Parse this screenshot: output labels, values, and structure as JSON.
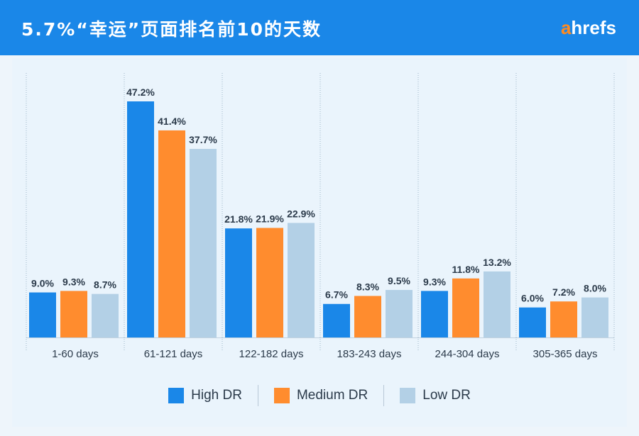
{
  "header": {
    "title": "5.7%“幸运”页面排名前10的天数",
    "logo_a": "a",
    "logo_rest": "hrefs"
  },
  "colors": {
    "header_bg": "#1a87e8",
    "high": "#1a87e8",
    "medium": "#ff8c2e",
    "low": "#b3d0e6",
    "text": "#2b3a4a"
  },
  "chart_data": {
    "type": "bar",
    "title": "5.7%“幸运”页面排名前10的天数",
    "categories": [
      "1-60 days",
      "61-121 days",
      "122-182 days",
      "183-243 days",
      "244-304 days",
      "305-365 days"
    ],
    "series": [
      {
        "name": "High DR",
        "values": [
          9.0,
          47.2,
          21.8,
          6.7,
          9.3,
          6.0
        ],
        "labels": [
          "9.0%",
          "47.2%",
          "21.8%",
          "6.7%",
          "9.3%",
          "6.0%"
        ]
      },
      {
        "name": "Medium DR",
        "values": [
          9.3,
          41.4,
          21.9,
          8.3,
          11.8,
          7.2
        ],
        "labels": [
          "9.3%",
          "41.4%",
          "21.9%",
          "8.3%",
          "11.8%",
          "7.2%"
        ]
      },
      {
        "name": "Low DR",
        "values": [
          8.7,
          37.7,
          22.9,
          9.5,
          13.2,
          8.0
        ],
        "labels": [
          "8.7%",
          "37.7%",
          "22.9%",
          "9.5%",
          "13.2%",
          "8.0%"
        ]
      }
    ],
    "ylim": [
      0,
      47.2
    ],
    "legend": "bottom-center",
    "grid": "vertical-dotted"
  }
}
